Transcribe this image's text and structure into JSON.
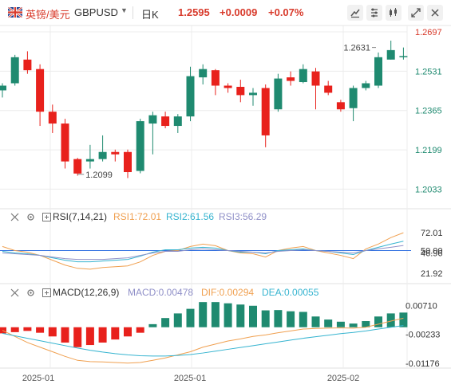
{
  "header": {
    "symbol_cn": "英镑/美元",
    "symbol_code": "GBPUSD",
    "period": "日K",
    "price": "1.2595",
    "change": "+0.0009",
    "change_pct": "+0.07%",
    "toolbar_icons": [
      "draw-icon",
      "settings-icon",
      "compare-icon",
      "expand-icon",
      "close-icon"
    ]
  },
  "colors": {
    "up": "#1f8a70",
    "down": "#e8211c",
    "accent_red": "#d83a2b",
    "rsi1": "#f0a050",
    "rsi2": "#36b4d0",
    "rsi3": "#9090c8",
    "dif": "#f0a050",
    "dea": "#36b4d0",
    "ref_line": "#2f6fe0"
  },
  "chart_data": [
    {
      "type": "candlestick",
      "title": "GBPUSD 日K",
      "yaxis_ticks": [
        "1.2697",
        "1.2531",
        "1.2365",
        "1.2199",
        "1.2033"
      ],
      "ylim": [
        1.1984,
        1.2697
      ],
      "annotations": [
        {
          "label": "1.2631",
          "value": 1.2631
        },
        {
          "label": "1.2099",
          "value": 1.2099
        }
      ],
      "candles": [
        {
          "o": 1.245,
          "h": 1.248,
          "l": 1.242,
          "c": 1.247
        },
        {
          "o": 1.248,
          "h": 1.26,
          "l": 1.247,
          "c": 1.259
        },
        {
          "o": 1.258,
          "h": 1.2615,
          "l": 1.252,
          "c": 1.2535
        },
        {
          "o": 1.254,
          "h": 1.256,
          "l": 1.23,
          "c": 1.236
        },
        {
          "o": 1.236,
          "h": 1.239,
          "l": 1.227,
          "c": 1.231
        },
        {
          "o": 1.231,
          "h": 1.233,
          "l": 1.212,
          "c": 1.215
        },
        {
          "o": 1.216,
          "h": 1.2165,
          "l": 1.209,
          "c": 1.2099
        },
        {
          "o": 1.215,
          "h": 1.222,
          "l": 1.212,
          "c": 1.216
        },
        {
          "o": 1.216,
          "h": 1.226,
          "l": 1.215,
          "c": 1.219
        },
        {
          "o": 1.219,
          "h": 1.22,
          "l": 1.215,
          "c": 1.218
        },
        {
          "o": 1.219,
          "h": 1.22,
          "l": 1.208,
          "c": 1.2105
        },
        {
          "o": 1.211,
          "h": 1.233,
          "l": 1.21,
          "c": 1.232
        },
        {
          "o": 1.231,
          "h": 1.236,
          "l": 1.218,
          "c": 1.2345
        },
        {
          "o": 1.234,
          "h": 1.236,
          "l": 1.229,
          "c": 1.23
        },
        {
          "o": 1.23,
          "h": 1.235,
          "l": 1.227,
          "c": 1.234
        },
        {
          "o": 1.234,
          "h": 1.255,
          "l": 1.232,
          "c": 1.251
        },
        {
          "o": 1.2505,
          "h": 1.256,
          "l": 1.2475,
          "c": 1.254
        },
        {
          "o": 1.2535,
          "h": 1.254,
          "l": 1.243,
          "c": 1.247
        },
        {
          "o": 1.247,
          "h": 1.248,
          "l": 1.244,
          "c": 1.246
        },
        {
          "o": 1.2465,
          "h": 1.2495,
          "l": 1.24,
          "c": 1.243
        },
        {
          "o": 1.243,
          "h": 1.246,
          "l": 1.2385,
          "c": 1.244
        },
        {
          "o": 1.246,
          "h": 1.2475,
          "l": 1.221,
          "c": 1.226
        },
        {
          "o": 1.237,
          "h": 1.252,
          "l": 1.236,
          "c": 1.25
        },
        {
          "o": 1.2505,
          "h": 1.253,
          "l": 1.247,
          "c": 1.249
        },
        {
          "o": 1.2485,
          "h": 1.256,
          "l": 1.248,
          "c": 1.254
        },
        {
          "o": 1.253,
          "h": 1.2545,
          "l": 1.237,
          "c": 1.247
        },
        {
          "o": 1.247,
          "h": 1.249,
          "l": 1.243,
          "c": 1.244
        },
        {
          "o": 1.24,
          "h": 1.241,
          "l": 1.236,
          "c": 1.237
        },
        {
          "o": 1.2375,
          "h": 1.247,
          "l": 1.232,
          "c": 1.246
        },
        {
          "o": 1.246,
          "h": 1.249,
          "l": 1.245,
          "c": 1.248
        },
        {
          "o": 1.247,
          "h": 1.261,
          "l": 1.246,
          "c": 1.259
        },
        {
          "o": 1.258,
          "h": 1.266,
          "l": 1.258,
          "c": 1.262
        },
        {
          "o": 1.259,
          "h": 1.2631,
          "l": 1.258,
          "c": 1.2595
        }
      ],
      "xaxis_labels": [
        "2025-01",
        "2025-01",
        "2025-02"
      ]
    },
    {
      "type": "line",
      "title": "RSI(7,14,21)",
      "labels": {
        "rsi1": "RSI1:72.01",
        "rsi2": "RSI2:61.56",
        "rsi3": "RSI3:56.29"
      },
      "yaxis_ticks": [
        "72.01",
        "50.00",
        "46.96",
        "21.92"
      ],
      "ylim": [
        15,
        80
      ],
      "reference": 50,
      "series": [
        {
          "key": "rsi1",
          "values": [
            55,
            50,
            48,
            44,
            38,
            32,
            28,
            27,
            29,
            30,
            31,
            36,
            44,
            49,
            50,
            55,
            58,
            56,
            50,
            47,
            46,
            42,
            50,
            53,
            55,
            50,
            47,
            44,
            40,
            52,
            58,
            66,
            72.01
          ]
        },
        {
          "key": "rsi2",
          "values": [
            49,
            47,
            46,
            44,
            41,
            38,
            36,
            36,
            37,
            38,
            39,
            43,
            48,
            51,
            51,
            53,
            54,
            53,
            50,
            48,
            48,
            46,
            50,
            51,
            52,
            50,
            49,
            47,
            45,
            50,
            54,
            58,
            61.56
          ]
        },
        {
          "key": "rsi3",
          "values": [
            47,
            46,
            45,
            44,
            42,
            40,
            39,
            39,
            39,
            40,
            41,
            44,
            47,
            49,
            49,
            51,
            52,
            51,
            50,
            49,
            48,
            47,
            49,
            50,
            51,
            50,
            49,
            48,
            47,
            50,
            52,
            54,
            56.29
          ]
        }
      ]
    },
    {
      "type": "bar+line",
      "title": "MACD(12,26,9)",
      "labels": {
        "macd": "MACD:0.00478",
        "dif": "DIF:0.00294",
        "dea": "DEA:0.00055"
      },
      "yaxis_ticks": [
        "0.00710",
        "-0.00233",
        "-0.01176"
      ],
      "ylim": [
        -0.0128,
        0.0085
      ],
      "histogram": [
        -0.002,
        -0.0016,
        -0.0012,
        -0.0018,
        -0.003,
        -0.005,
        -0.0065,
        -0.0058,
        -0.005,
        -0.004,
        -0.003,
        -0.0018,
        0.001,
        0.003,
        0.0045,
        0.006,
        0.0082,
        0.0082,
        0.0078,
        0.0074,
        0.007,
        0.0055,
        0.0056,
        0.0052,
        0.005,
        0.0035,
        0.0025,
        0.0018,
        0.0012,
        0.002,
        0.0035,
        0.0045,
        0.00478
      ],
      "series": [
        {
          "key": "dif",
          "values": [
            -0.001,
            -0.003,
            -0.005,
            -0.0065,
            -0.008,
            -0.0095,
            -0.0108,
            -0.0112,
            -0.0113,
            -0.0115,
            -0.0117,
            -0.0115,
            -0.0108,
            -0.01,
            -0.009,
            -0.008,
            -0.0065,
            -0.0055,
            -0.0045,
            -0.0038,
            -0.003,
            -0.0025,
            -0.0018,
            -0.0012,
            -0.0006,
            -0.0004,
            -0.0003,
            -0.0002,
            -0.0003,
            0.0,
            0.001,
            0.002,
            0.00294
          ]
        },
        {
          "key": "dea",
          "values": [
            -0.002,
            -0.0028,
            -0.0036,
            -0.0044,
            -0.0052,
            -0.006,
            -0.0068,
            -0.0075,
            -0.0081,
            -0.0086,
            -0.009,
            -0.0093,
            -0.0094,
            -0.0094,
            -0.0092,
            -0.0089,
            -0.0084,
            -0.0078,
            -0.0072,
            -0.0066,
            -0.006,
            -0.0054,
            -0.0048,
            -0.0042,
            -0.0036,
            -0.0031,
            -0.0026,
            -0.0021,
            -0.0017,
            -0.0012,
            -0.0006,
            0.0,
            0.00055
          ]
        }
      ]
    }
  ]
}
